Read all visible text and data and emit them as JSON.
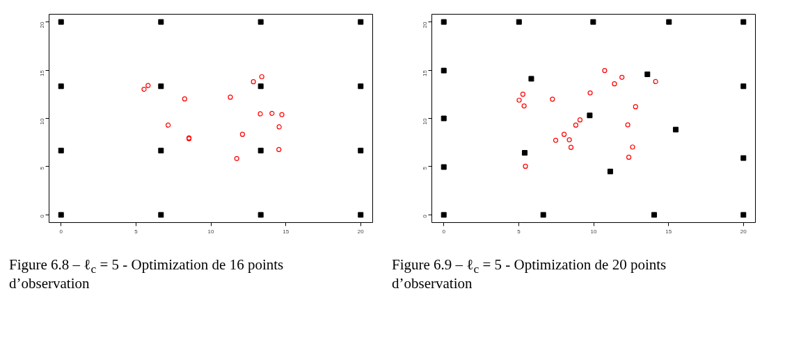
{
  "chart_data": [
    {
      "type": "scatter",
      "xlim": [
        -0.8,
        20.8
      ],
      "ylim": [
        -0.8,
        20.8
      ],
      "xticks": [
        0,
        5,
        10,
        15,
        20
      ],
      "yticks": [
        0,
        5,
        10,
        15,
        20
      ],
      "annotations": [
        "Figure 6.8 – ℓ$_{c}$ = 5 - Optimization de 16 points d’observation"
      ],
      "series": [
        {
          "color": "#000000",
          "marker": "square",
          "x": [
            0,
            6.67,
            13.33,
            20,
            0,
            6.67,
            13.33,
            20,
            0,
            6.67,
            13.33,
            20,
            0,
            6.67,
            13.33,
            20
          ],
          "values": [
            20,
            20,
            20,
            20,
            13.33,
            13.33,
            13.33,
            13.33,
            6.67,
            6.67,
            6.67,
            6.67,
            0,
            0,
            0,
            0
          ]
        },
        {
          "color": "#ff0000",
          "marker": "circle",
          "x": [
            5.54,
            5.81,
            8.25,
            7.15,
            8.54,
            8.54,
            11.3,
            12.84,
            13.4,
            12.11,
            11.73,
            13.3,
            14.08,
            14.74,
            14.56,
            14.54
          ],
          "values": [
            13.02,
            13.41,
            12.02,
            9.3,
            7.97,
            7.9,
            12.2,
            13.8,
            14.32,
            8.35,
            5.84,
            10.47,
            10.52,
            10.39,
            9.12,
            6.77
          ]
        }
      ]
    },
    {
      "type": "scatter",
      "xlim": [
        -0.8,
        20.8
      ],
      "ylim": [
        -0.8,
        20.8
      ],
      "xticks": [
        0,
        5,
        10,
        15,
        20
      ],
      "yticks": [
        0,
        5,
        10,
        15,
        20
      ],
      "annotations": [
        "Figure 6.9 – ℓ$_{c}$ = 5 - Optimization de 20 points d’observation"
      ],
      "series": [
        {
          "color": "#000000",
          "marker": "square",
          "x": [
            0,
            5.02,
            9.97,
            15.03,
            20,
            0,
            0,
            0,
            0,
            6.64,
            14.04,
            20,
            20,
            20,
            5.84,
            13.59,
            9.74,
            15.48,
            5.4,
            11.11
          ],
          "values": [
            20,
            20,
            20,
            20,
            20,
            14.96,
            10,
            4.96,
            0,
            0,
            0,
            0,
            13.33,
            5.89,
            14.11,
            14.57,
            10.31,
            8.84,
            6.43,
            4.5
          ]
        },
        {
          "color": "#ff0000",
          "marker": "circle",
          "x": [
            5.03,
            5.28,
            5.36,
            5.45,
            7.25,
            7.47,
            8.03,
            8.38,
            8.49,
            8.81,
            9.09,
            9.77,
            10.74,
            11.39,
            11.89,
            14.14,
            12.8,
            12.28,
            12.6,
            12.35
          ],
          "values": [
            11.89,
            12.51,
            11.29,
            5.04,
            11.99,
            7.73,
            8.35,
            7.78,
            7.0,
            9.3,
            9.84,
            12.64,
            14.96,
            13.59,
            14.26,
            13.82,
            11.21,
            9.33,
            7.03,
            5.97
          ]
        }
      ]
    }
  ]
}
